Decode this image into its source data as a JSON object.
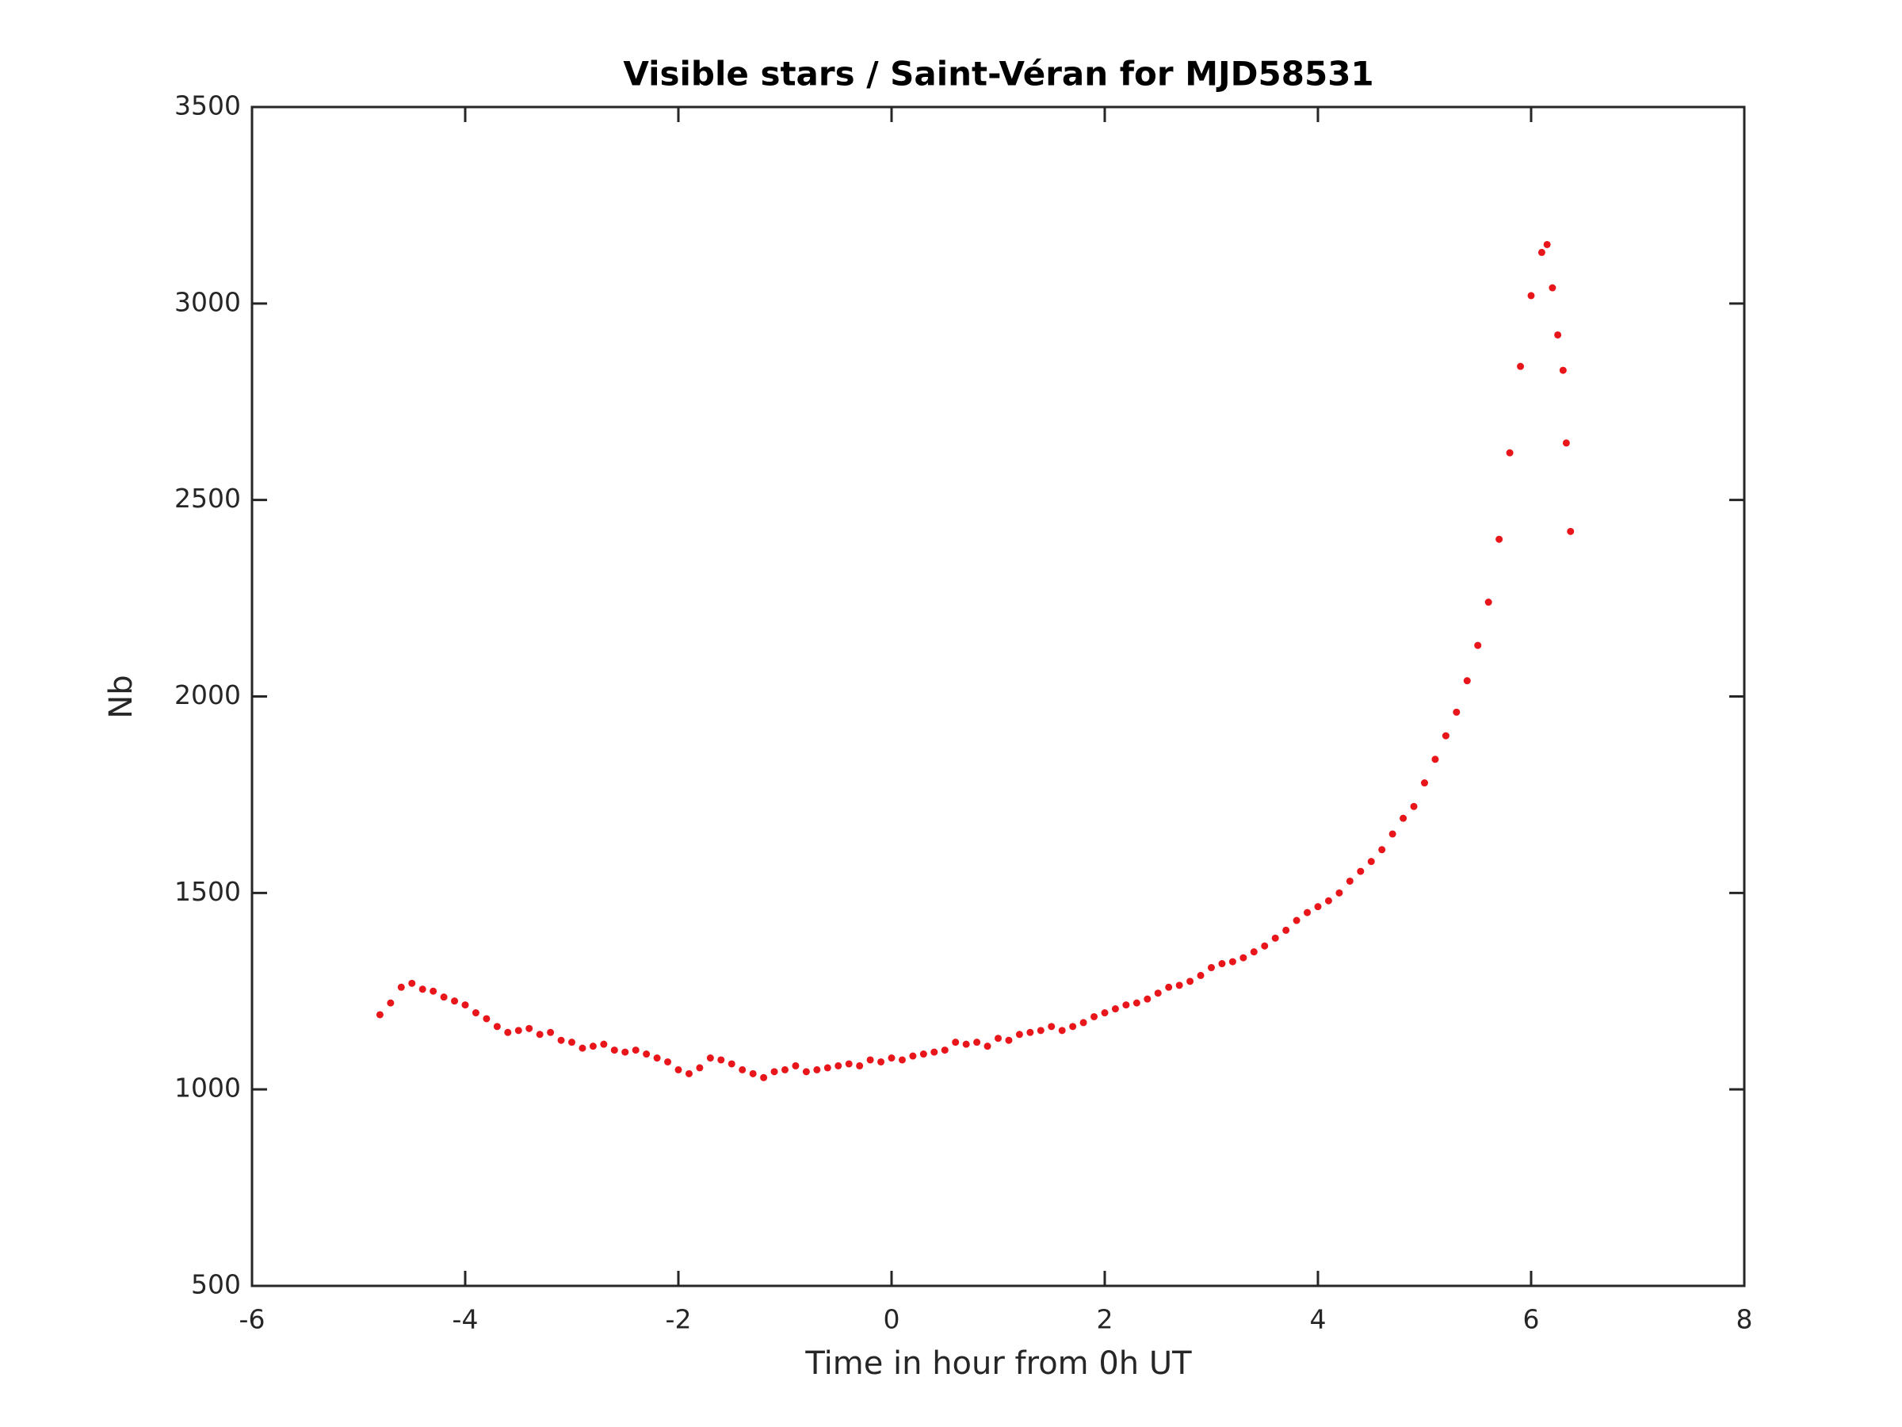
{
  "chart_data": {
    "type": "scatter",
    "title": "Visible stars / Saint-Véran for MJD58531",
    "x_label": "Time in hour from 0h UT",
    "y_label": "Nb",
    "color": "#e8161b",
    "xlim": [
      -6,
      8
    ],
    "xticks": [
      -6,
      -4,
      -2,
      0,
      2,
      4,
      6,
      8
    ],
    "ylim": [
      500,
      3500
    ],
    "yticks": [
      500,
      1000,
      1500,
      2000,
      2500,
      3000,
      3500
    ],
    "x": [
      -4.8,
      -4.7,
      -4.6,
      -4.5,
      -4.4,
      -4.3,
      -4.2,
      -4.1,
      -4.0,
      -3.9,
      -3.8,
      -3.7,
      -3.6,
      -3.5,
      -3.4,
      -3.3,
      -3.2,
      -3.1,
      -3.0,
      -2.9,
      -2.8,
      -2.7,
      -2.6,
      -2.5,
      -2.4,
      -2.3,
      -2.2,
      -2.1,
      -2.0,
      -1.9,
      -1.8,
      -1.7,
      -1.6,
      -1.5,
      -1.4,
      -1.3,
      -1.2,
      -1.1,
      -1.0,
      -0.9,
      -0.8,
      -0.7,
      -0.6,
      -0.5,
      -0.4,
      -0.3,
      -0.2,
      -0.1,
      0.0,
      0.1,
      0.2,
      0.3,
      0.4,
      0.5,
      0.6,
      0.7,
      0.8,
      0.9,
      1.0,
      1.1,
      1.2,
      1.3,
      1.4,
      1.5,
      1.6,
      1.7,
      1.8,
      1.9,
      2.0,
      2.1,
      2.2,
      2.3,
      2.4,
      2.5,
      2.6,
      2.7,
      2.8,
      2.9,
      3.0,
      3.1,
      3.2,
      3.3,
      3.4,
      3.5,
      3.6,
      3.7,
      3.8,
      3.9,
      4.0,
      4.1,
      4.2,
      4.3,
      4.4,
      4.5,
      4.6,
      4.7,
      4.8,
      4.9,
      5.0,
      5.1,
      5.2,
      5.3,
      5.4,
      5.5,
      5.6,
      5.7,
      5.8,
      5.9,
      6.0,
      6.1,
      6.15,
      6.2,
      6.25,
      6.3,
      6.33,
      6.37
    ],
    "values": [
      1190,
      1220,
      1260,
      1270,
      1255,
      1250,
      1235,
      1225,
      1215,
      1195,
      1180,
      1160,
      1145,
      1150,
      1155,
      1140,
      1145,
      1125,
      1120,
      1105,
      1110,
      1115,
      1100,
      1095,
      1100,
      1090,
      1080,
      1070,
      1050,
      1040,
      1055,
      1080,
      1075,
      1065,
      1050,
      1040,
      1030,
      1045,
      1050,
      1060,
      1045,
      1050,
      1055,
      1060,
      1065,
      1060,
      1075,
      1070,
      1080,
      1075,
      1085,
      1090,
      1095,
      1100,
      1120,
      1115,
      1120,
      1110,
      1130,
      1125,
      1140,
      1145,
      1150,
      1160,
      1150,
      1160,
      1170,
      1185,
      1195,
      1205,
      1215,
      1220,
      1230,
      1245,
      1260,
      1265,
      1275,
      1290,
      1310,
      1320,
      1325,
      1335,
      1350,
      1365,
      1385,
      1405,
      1430,
      1450,
      1465,
      1480,
      1500,
      1530,
      1555,
      1580,
      1610,
      1650,
      1690,
      1720,
      1780,
      1840,
      1900,
      1960,
      2040,
      2130,
      2240,
      2400,
      2620,
      2840,
      3020,
      3130,
      3150,
      3040,
      2920,
      2830,
      2645,
      2420
    ]
  }
}
